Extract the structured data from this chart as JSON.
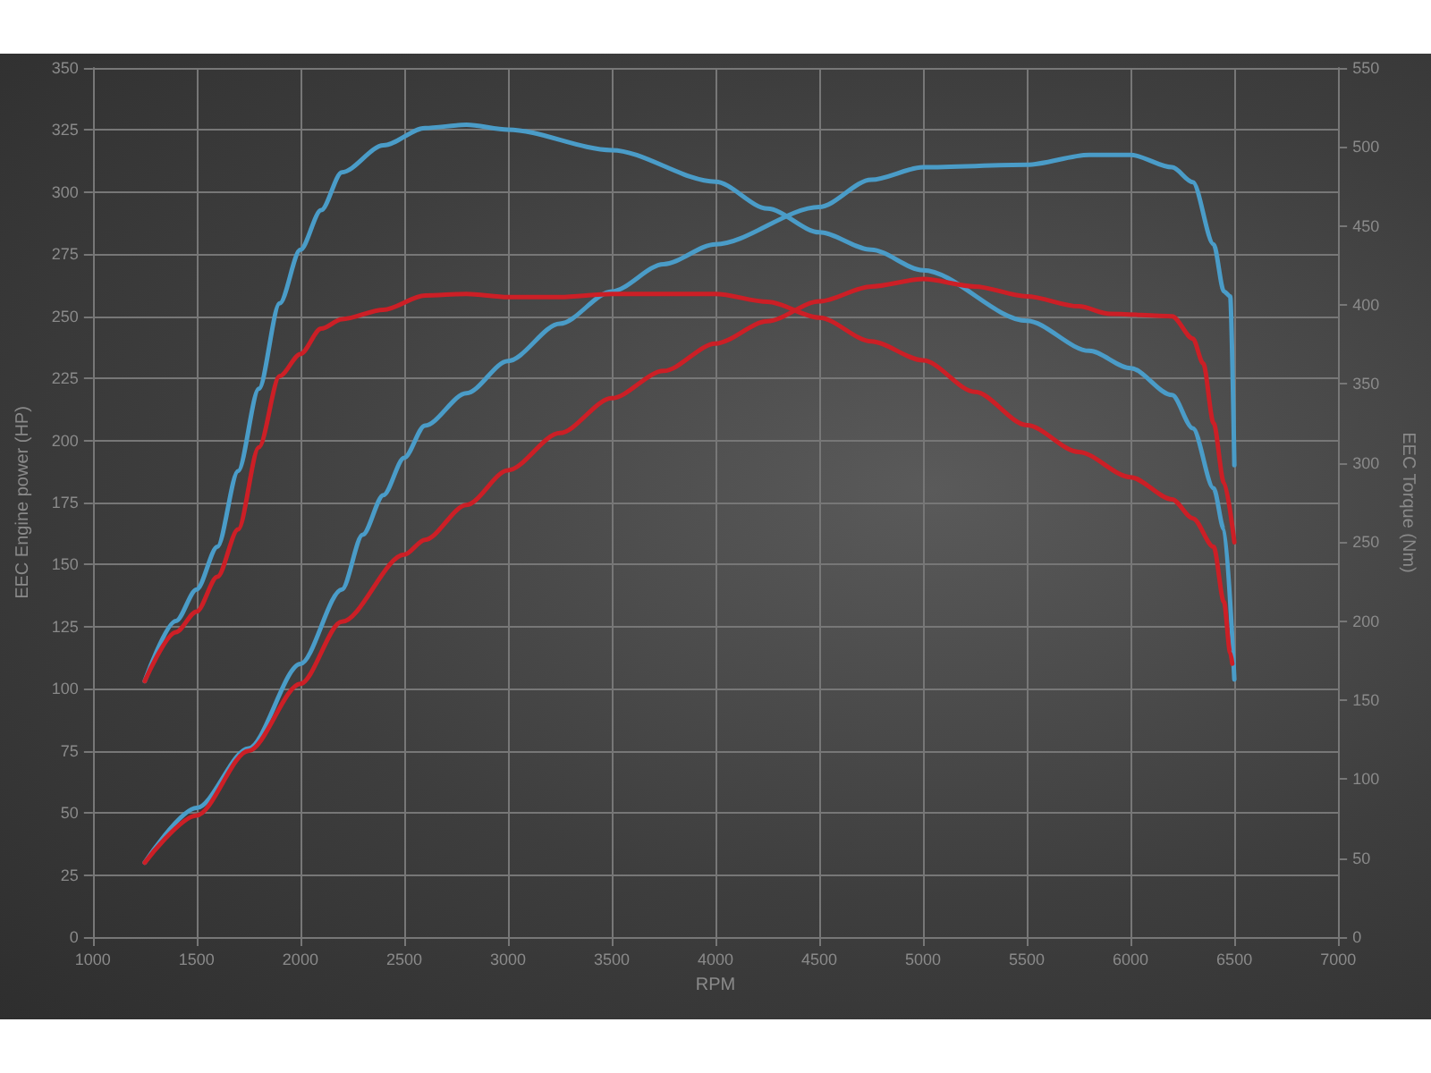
{
  "chart_data": {
    "type": "line",
    "xlabel": "RPM",
    "ylabel": "EEC Engine power (HP)",
    "y2label": "EEC Torque (Nm)",
    "xlim": [
      1000,
      7000
    ],
    "xticks": [
      1000,
      1500,
      2000,
      2500,
      3000,
      3500,
      4000,
      4500,
      5000,
      5500,
      6000,
      6500,
      7000
    ],
    "ylim": [
      0,
      350
    ],
    "yticks": [
      0,
      25,
      50,
      75,
      100,
      125,
      150,
      175,
      200,
      225,
      250,
      275,
      300,
      325,
      350
    ],
    "y2lim": [
      0,
      550
    ],
    "y2ticks": [
      0,
      50,
      100,
      150,
      200,
      250,
      300,
      350,
      400,
      450,
      500,
      550
    ],
    "grid": true,
    "marker": "none",
    "line_style": "solid",
    "series": [
      {
        "color": "#4a9cc8",
        "axis": "y2",
        "x": [
          1250,
          1400,
          1500,
          1600,
          1700,
          1800,
          1900,
          2000,
          2100,
          2200,
          2400,
          2600,
          2800,
          3000,
          3500,
          4000,
          4250,
          4500,
          4750,
          5000,
          5500,
          5800,
          6000,
          6200,
          6300,
          6400,
          6450,
          6500
        ],
        "values": [
          162,
          200,
          220,
          247,
          295,
          347,
          401,
          435,
          460,
          484,
          501,
          512,
          514,
          511,
          498,
          478,
          461,
          446,
          435,
          422,
          390,
          371,
          360,
          343,
          322,
          284,
          258,
          163
        ]
      },
      {
        "color": "#4a9cc8",
        "x": [
          1250,
          1500,
          1750,
          2000,
          2200,
          2300,
          2400,
          2500,
          2600,
          2800,
          3000,
          3250,
          3500,
          3750,
          4000,
          4500,
          4750,
          5000,
          5500,
          5800,
          6000,
          6200,
          6300,
          6400,
          6450,
          6480,
          6500
        ],
        "values": [
          30,
          52,
          76,
          110,
          140,
          162,
          178,
          193,
          206,
          219,
          232,
          247,
          260,
          271,
          279,
          294,
          305,
          310,
          311,
          315,
          315,
          310,
          304,
          279,
          260,
          258,
          190
        ]
      },
      {
        "color": "#cc1f26",
        "axis": "y2",
        "x": [
          1250,
          1400,
          1500,
          1600,
          1700,
          1800,
          1900,
          2000,
          2100,
          2200,
          2400,
          2600,
          2800,
          3000,
          3250,
          3500,
          4000,
          4250,
          4500,
          4750,
          5000,
          5250,
          5500,
          5750,
          6000,
          6200,
          6300,
          6400,
          6450,
          6480,
          6490
        ],
        "values": [
          162,
          193,
          206,
          228,
          258,
          310,
          355,
          369,
          385,
          391,
          397,
          406,
          407,
          405,
          405,
          407,
          407,
          402,
          392,
          377,
          365,
          345,
          324,
          307,
          291,
          277,
          265,
          247,
          212,
          180,
          173
        ]
      },
      {
        "color": "#cc1f26",
        "x": [
          1250,
          1500,
          1750,
          2000,
          2200,
          2500,
          2600,
          2800,
          3000,
          3250,
          3500,
          3750,
          4000,
          4250,
          4500,
          4750,
          5000,
          5250,
          5500,
          5750,
          5900,
          6200,
          6300,
          6350,
          6400,
          6450,
          6500
        ],
        "values": [
          30,
          49,
          75,
          102,
          127,
          154,
          160,
          174,
          188,
          203,
          217,
          228,
          239,
          248,
          256,
          262,
          265,
          262,
          258,
          254,
          251,
          250,
          241,
          231,
          207,
          183,
          159
        ]
      }
    ]
  }
}
